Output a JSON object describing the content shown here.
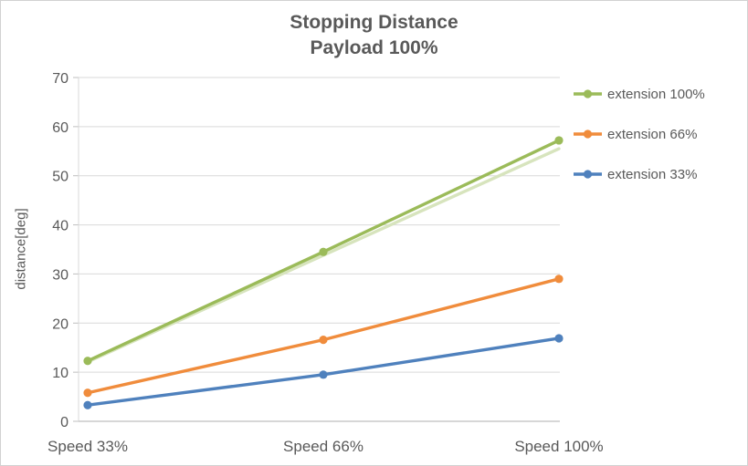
{
  "title": "Stopping Distance",
  "subtitle": "Payload 100%",
  "colors": {
    "title_text": "#595959",
    "axis_text": "#595959",
    "grid": "#d9d9d9",
    "axis_line": "#bfbfbf",
    "frame_border": "#d2d2d2",
    "series_green": "#9bbb59",
    "series_green_faint": "#d7e4bd",
    "series_orange": "#f08c3c",
    "series_blue": "#4f81bd"
  },
  "chart_data": {
    "type": "line",
    "title": "Stopping Distance",
    "subtitle": "Payload 100%",
    "xlabel": "",
    "ylabel": "distance[deg]",
    "ylim": [
      0,
      70
    ],
    "ytick_step": 10,
    "grid": true,
    "legend_position": "right",
    "categories": [
      "Speed 33%",
      "Speed 66%",
      "Speed 100%"
    ],
    "series": [
      {
        "name": "extension 100% (faint duplicate)",
        "color": "#d7e4bd",
        "values": [
          12.1,
          33.8,
          55.5
        ],
        "marker": false,
        "in_legend": false
      },
      {
        "name": "extension 100%",
        "color": "#9bbb59",
        "values": [
          12.3,
          34.5,
          57.2
        ],
        "marker": true,
        "in_legend": true
      },
      {
        "name": "extension 66%",
        "color": "#f08c3c",
        "values": [
          5.8,
          16.6,
          29.0
        ],
        "marker": true,
        "in_legend": true
      },
      {
        "name": "extension 33%",
        "color": "#4f81bd",
        "values": [
          3.3,
          9.5,
          16.9
        ],
        "marker": true,
        "in_legend": true
      }
    ]
  }
}
